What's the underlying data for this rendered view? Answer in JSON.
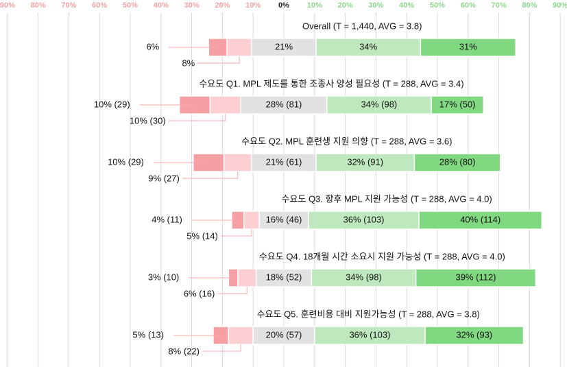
{
  "chart_data": {
    "type": "bar",
    "subtype": "diverging-stacked-horizontal",
    "xlim": [
      -90,
      90
    ],
    "x_unit": "%",
    "x_tick_labels": [
      "90%",
      "80%",
      "70%",
      "60%",
      "50%",
      "40%",
      "30%",
      "20%",
      "10%",
      "0%",
      "10%",
      "20%",
      "30%",
      "40%",
      "50%",
      "60%",
      "70%",
      "80%",
      "90%"
    ],
    "x_tick_values": [
      -90,
      -80,
      -70,
      -60,
      -50,
      -40,
      -30,
      -20,
      -10,
      0,
      10,
      20,
      30,
      40,
      50,
      60,
      70,
      80,
      90
    ],
    "grid": true,
    "legend": "none",
    "segment_order": [
      "strong_negative",
      "negative",
      "neutral",
      "positive",
      "strong_positive"
    ],
    "colors": {
      "strong_negative": "#f7a0a4",
      "negative": "#fcd0d2",
      "neutral": "#e2e2e2",
      "positive": "#bfe8bf",
      "strong_positive": "#80d880",
      "negative_tick": "#f4a3a6",
      "positive_tick": "#8ed88e",
      "zero_tick": "#222222",
      "grid": "#d9d9d9",
      "leader": "#f6a9ab"
    },
    "rows": [
      {
        "title": "Overall (T = 1,440, AVG = 3.8)",
        "values": [
          6,
          8,
          21,
          34,
          31
        ],
        "labels": [
          "6%",
          "8%",
          "21%",
          "34%",
          "31%"
        ]
      },
      {
        "title": "수요도 Q1. MPL 제도를 통한 조종사 양성 필요성 (T = 288, AVG = 3.4)",
        "values": [
          10,
          10,
          28,
          34,
          17
        ],
        "labels": [
          "10% (29)",
          "10% (30)",
          "28% (81)",
          "34% (98)",
          "17% (50)"
        ]
      },
      {
        "title": "수요도 Q2. MPL 훈련생 지원 의향 (T = 288, AVG = 3.6)",
        "values": [
          10,
          9,
          21,
          32,
          28
        ],
        "labels": [
          "10% (29)",
          "9% (27)",
          "21% (61)",
          "32% (91)",
          "28% (80)"
        ]
      },
      {
        "title": "수요도 Q3. 향후 MPL 지원 가능성 (T = 288, AVG = 4.0)",
        "values": [
          4,
          5,
          16,
          36,
          40
        ],
        "labels": [
          "4% (11)",
          "5% (14)",
          "16% (46)",
          "36% (103)",
          "40% (114)"
        ]
      },
      {
        "title": "수요도 Q4. 18개월 시간 소요시 지원 가능성 (T = 288, AVG = 4.0)",
        "values": [
          3,
          6,
          18,
          34,
          39
        ],
        "labels": [
          "3% (10)",
          "6% (16)",
          "18% (52)",
          "34% (98)",
          "39% (112)"
        ]
      },
      {
        "title": "수요도 Q5. 훈련비용 대비 지원가능성 (T = 288, AVG = 3.8)",
        "values": [
          5,
          8,
          20,
          36,
          32
        ],
        "labels": [
          "5% (13)",
          "8% (22)",
          "20% (57)",
          "36% (103)",
          "32% (93)"
        ]
      }
    ]
  }
}
